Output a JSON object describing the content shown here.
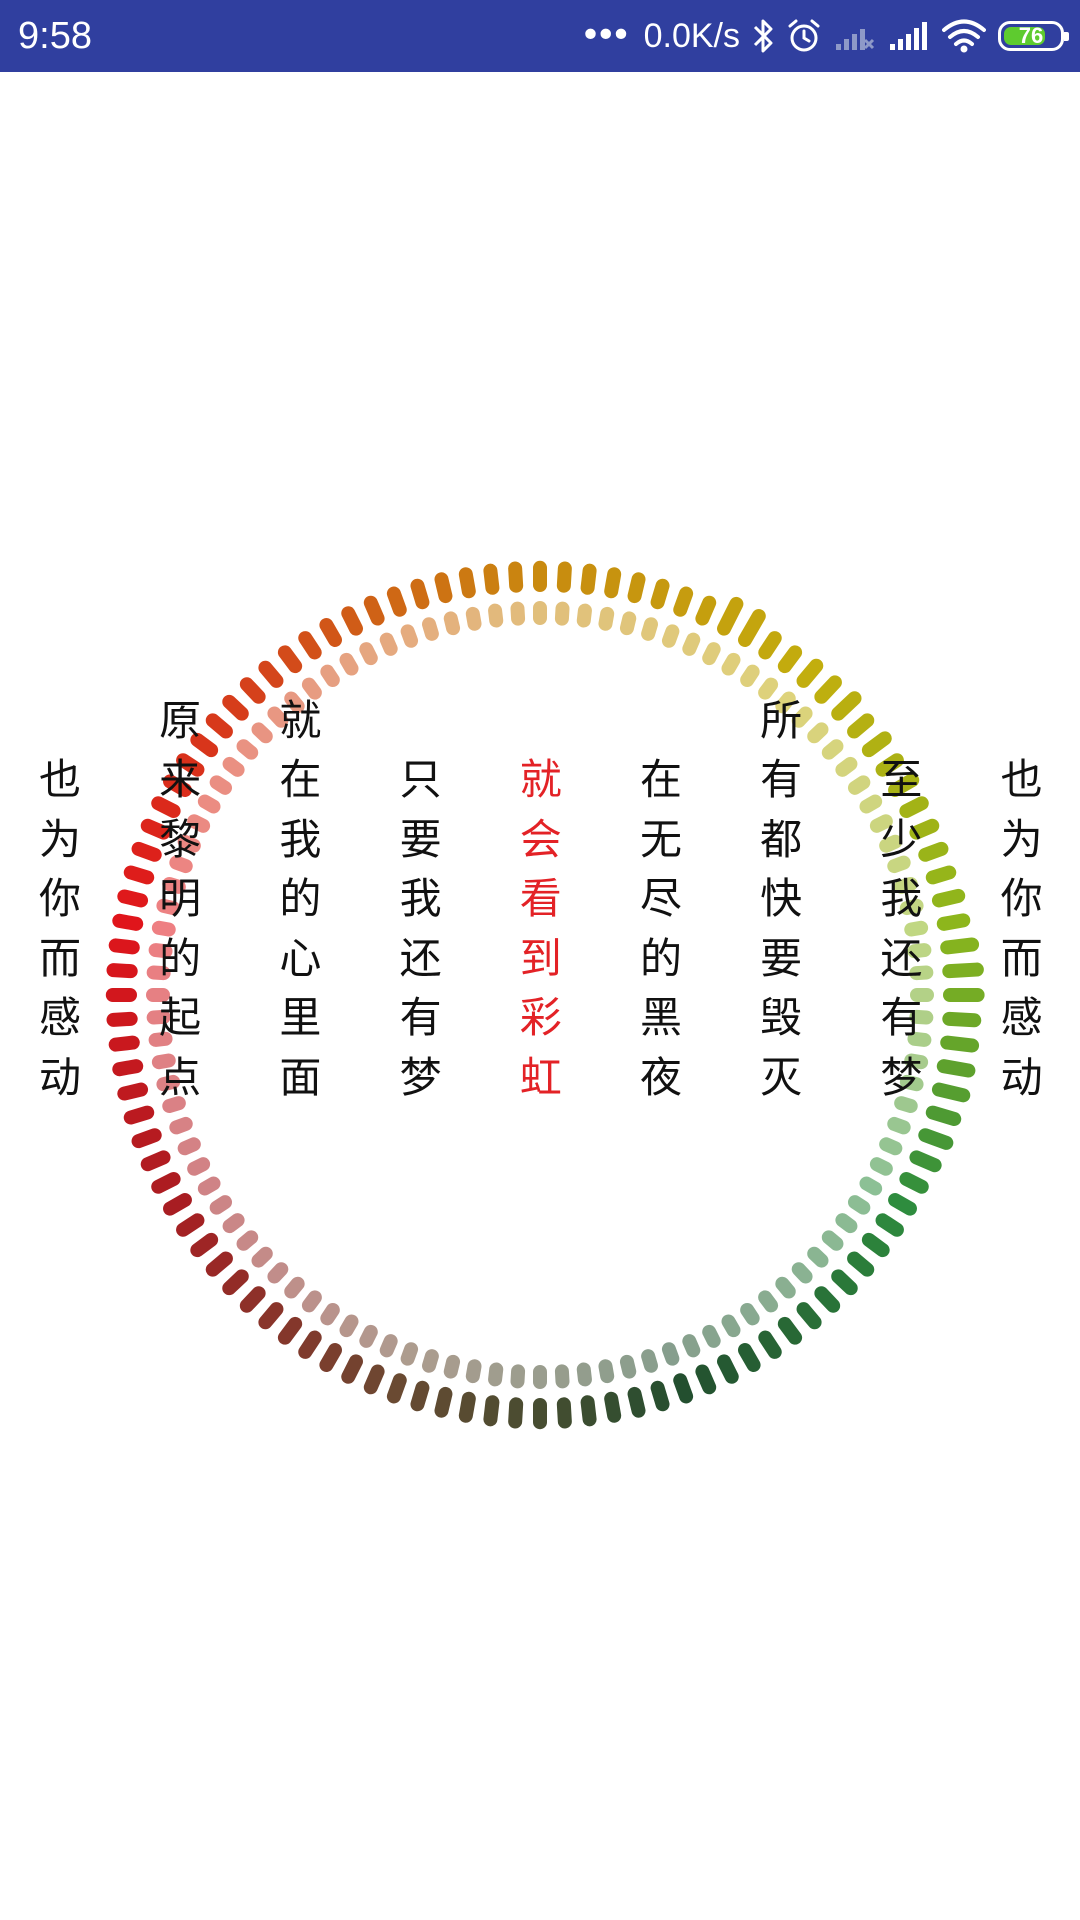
{
  "status_bar": {
    "time": "9:58",
    "network_speed": "0.0K/s",
    "battery_level": "76",
    "background": "#303f9f",
    "battery_color": "#5ecb2f",
    "icons": [
      "more-dots-icon",
      "bluetooth-icon",
      "alarm-icon",
      "signal-sim1-icon",
      "signal-sim2-icon",
      "wifi-icon",
      "battery-icon"
    ]
  },
  "lyrics": {
    "active_index": 4,
    "active_color": "#e32226",
    "text_color": "#111111",
    "lines": [
      {
        "text": "也为你而感动",
        "offset": 0
      },
      {
        "text": "原来黎明的起点",
        "offset": -1
      },
      {
        "text": "就在我的心里面",
        "offset": -1
      },
      {
        "text": "只要我还有梦",
        "offset": 0
      },
      {
        "text": "就会看到彩虹",
        "offset": 0
      },
      {
        "text": "在无尽的黑夜",
        "offset": 0
      },
      {
        "text": "所有都快要毁灭",
        "offset": -1
      },
      {
        "text": "至少我还有梦",
        "offset": 0
      },
      {
        "text": "也为你而感动",
        "offset": 0
      }
    ]
  },
  "spectrum_ring": {
    "outer_segments": 108,
    "inner_segments": 108,
    "outer_levels": [
      0.2,
      0.2,
      0.2,
      0.2,
      0.2,
      0.2,
      0.2,
      0.2,
      0.6,
      0.6,
      0.2,
      0.2,
      0.3,
      0.3,
      0.4,
      0.2,
      0.3,
      0.2,
      0.3,
      0.2,
      0.2,
      0.2,
      0.2,
      0.3,
      0.3,
      0.5,
      0.6,
      0.6,
      0.5,
      0.5,
      0.5,
      0.5,
      0.4,
      0.4,
      0.3,
      0.2,
      0.2,
      0.2,
      0.2,
      0.2,
      0.2,
      0.2,
      0.2,
      0.2,
      0.2,
      0.2,
      0.2,
      0.2,
      0.2,
      0.2,
      0.2,
      0.2,
      0.2,
      0.2,
      0.2,
      0.2,
      0.2,
      0.2,
      0.2,
      0.2,
      0.2,
      0.2,
      0.2,
      0.2,
      0.2,
      0.2,
      0.2,
      0.2,
      0.2,
      0.2,
      0.2,
      0.2,
      0.2,
      0.2,
      0.2,
      0.2,
      0.2,
      0.2,
      0.2,
      0.2,
      0.2,
      0.2,
      0.2,
      0.2,
      0.2,
      0.2,
      0.2,
      0.2,
      0.2,
      0.2,
      0.2,
      0.2,
      0.2,
      0.2,
      0.2,
      0.2,
      0.2,
      0.2,
      0.2,
      0.2,
      0.2,
      0.2,
      0.2,
      0.2,
      0.2,
      0.2,
      0.2,
      0.2
    ],
    "color_stops": [
      "#c98a0f",
      "#c2ae0e",
      "#8db61c",
      "#2e8c3e",
      "#234f2f",
      "#6a4a32",
      "#a81d22",
      "#e0151b",
      "#d4451b",
      "#c98a0f"
    ],
    "inner_opacity": 0.55
  }
}
